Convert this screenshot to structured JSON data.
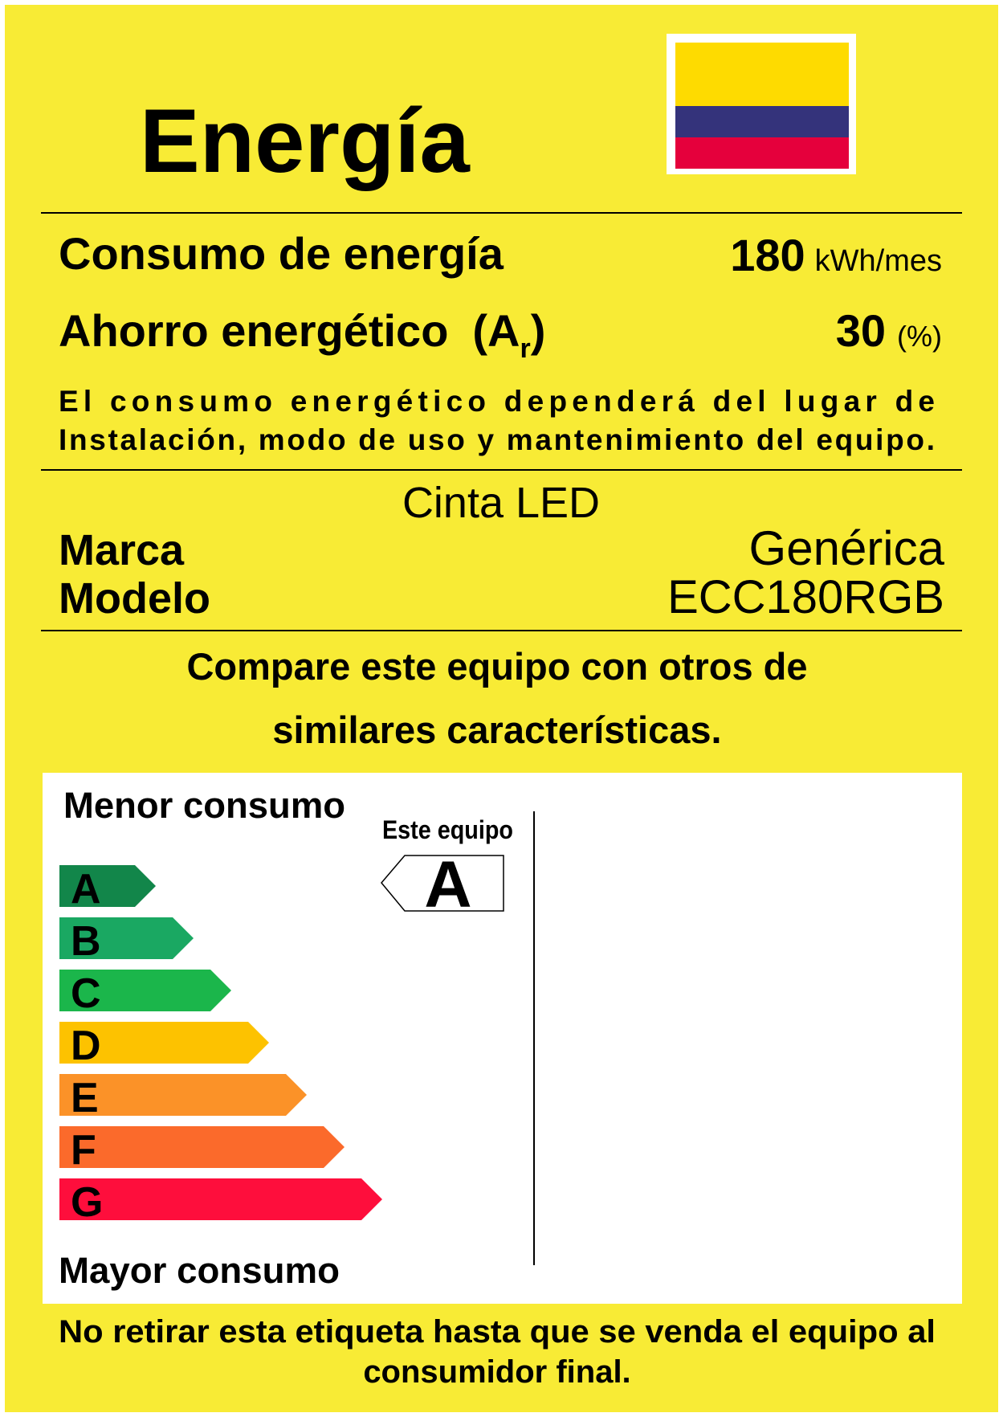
{
  "header": {
    "title": "Energía"
  },
  "consumption": {
    "label": "Consumo de energía",
    "value": "180",
    "unit": "kWh/mes"
  },
  "savings": {
    "label": "Ahorro energético",
    "symbol_open": "(A",
    "symbol_sub": "r",
    "symbol_close": ")",
    "value": "30",
    "unit": "(%)"
  },
  "note": {
    "lines": [
      "El consumo energético dependerá del lugar de",
      "Instalación, modo de uso y mantenimiento del equipo."
    ]
  },
  "product": {
    "name": "Cinta LED",
    "brand_label": "Marca",
    "brand": "Genérica",
    "model_label": "Modelo",
    "model": "ECC180RGB"
  },
  "compare": {
    "lines": [
      "Compare este equipo con otros de",
      "similares características."
    ]
  },
  "scale": {
    "top_label": "Menor consumo",
    "bottom_label": "Mayor consumo",
    "this_label": "Este equipo",
    "rating": "A",
    "classes": [
      {
        "letter": "A",
        "color": "#12864a"
      },
      {
        "letter": "B",
        "color": "#1aa862"
      },
      {
        "letter": "C",
        "color": "#1bb64b"
      },
      {
        "letter": "D",
        "color": "#fdc200"
      },
      {
        "letter": "E",
        "color": "#fb9228"
      },
      {
        "letter": "F",
        "color": "#fb6a2b"
      },
      {
        "letter": "G",
        "color": "#fe0e3c"
      }
    ]
  },
  "footer": {
    "lines": [
      "No retirar esta etiqueta hasta que se venda el equipo al",
      "consumidor final."
    ]
  }
}
